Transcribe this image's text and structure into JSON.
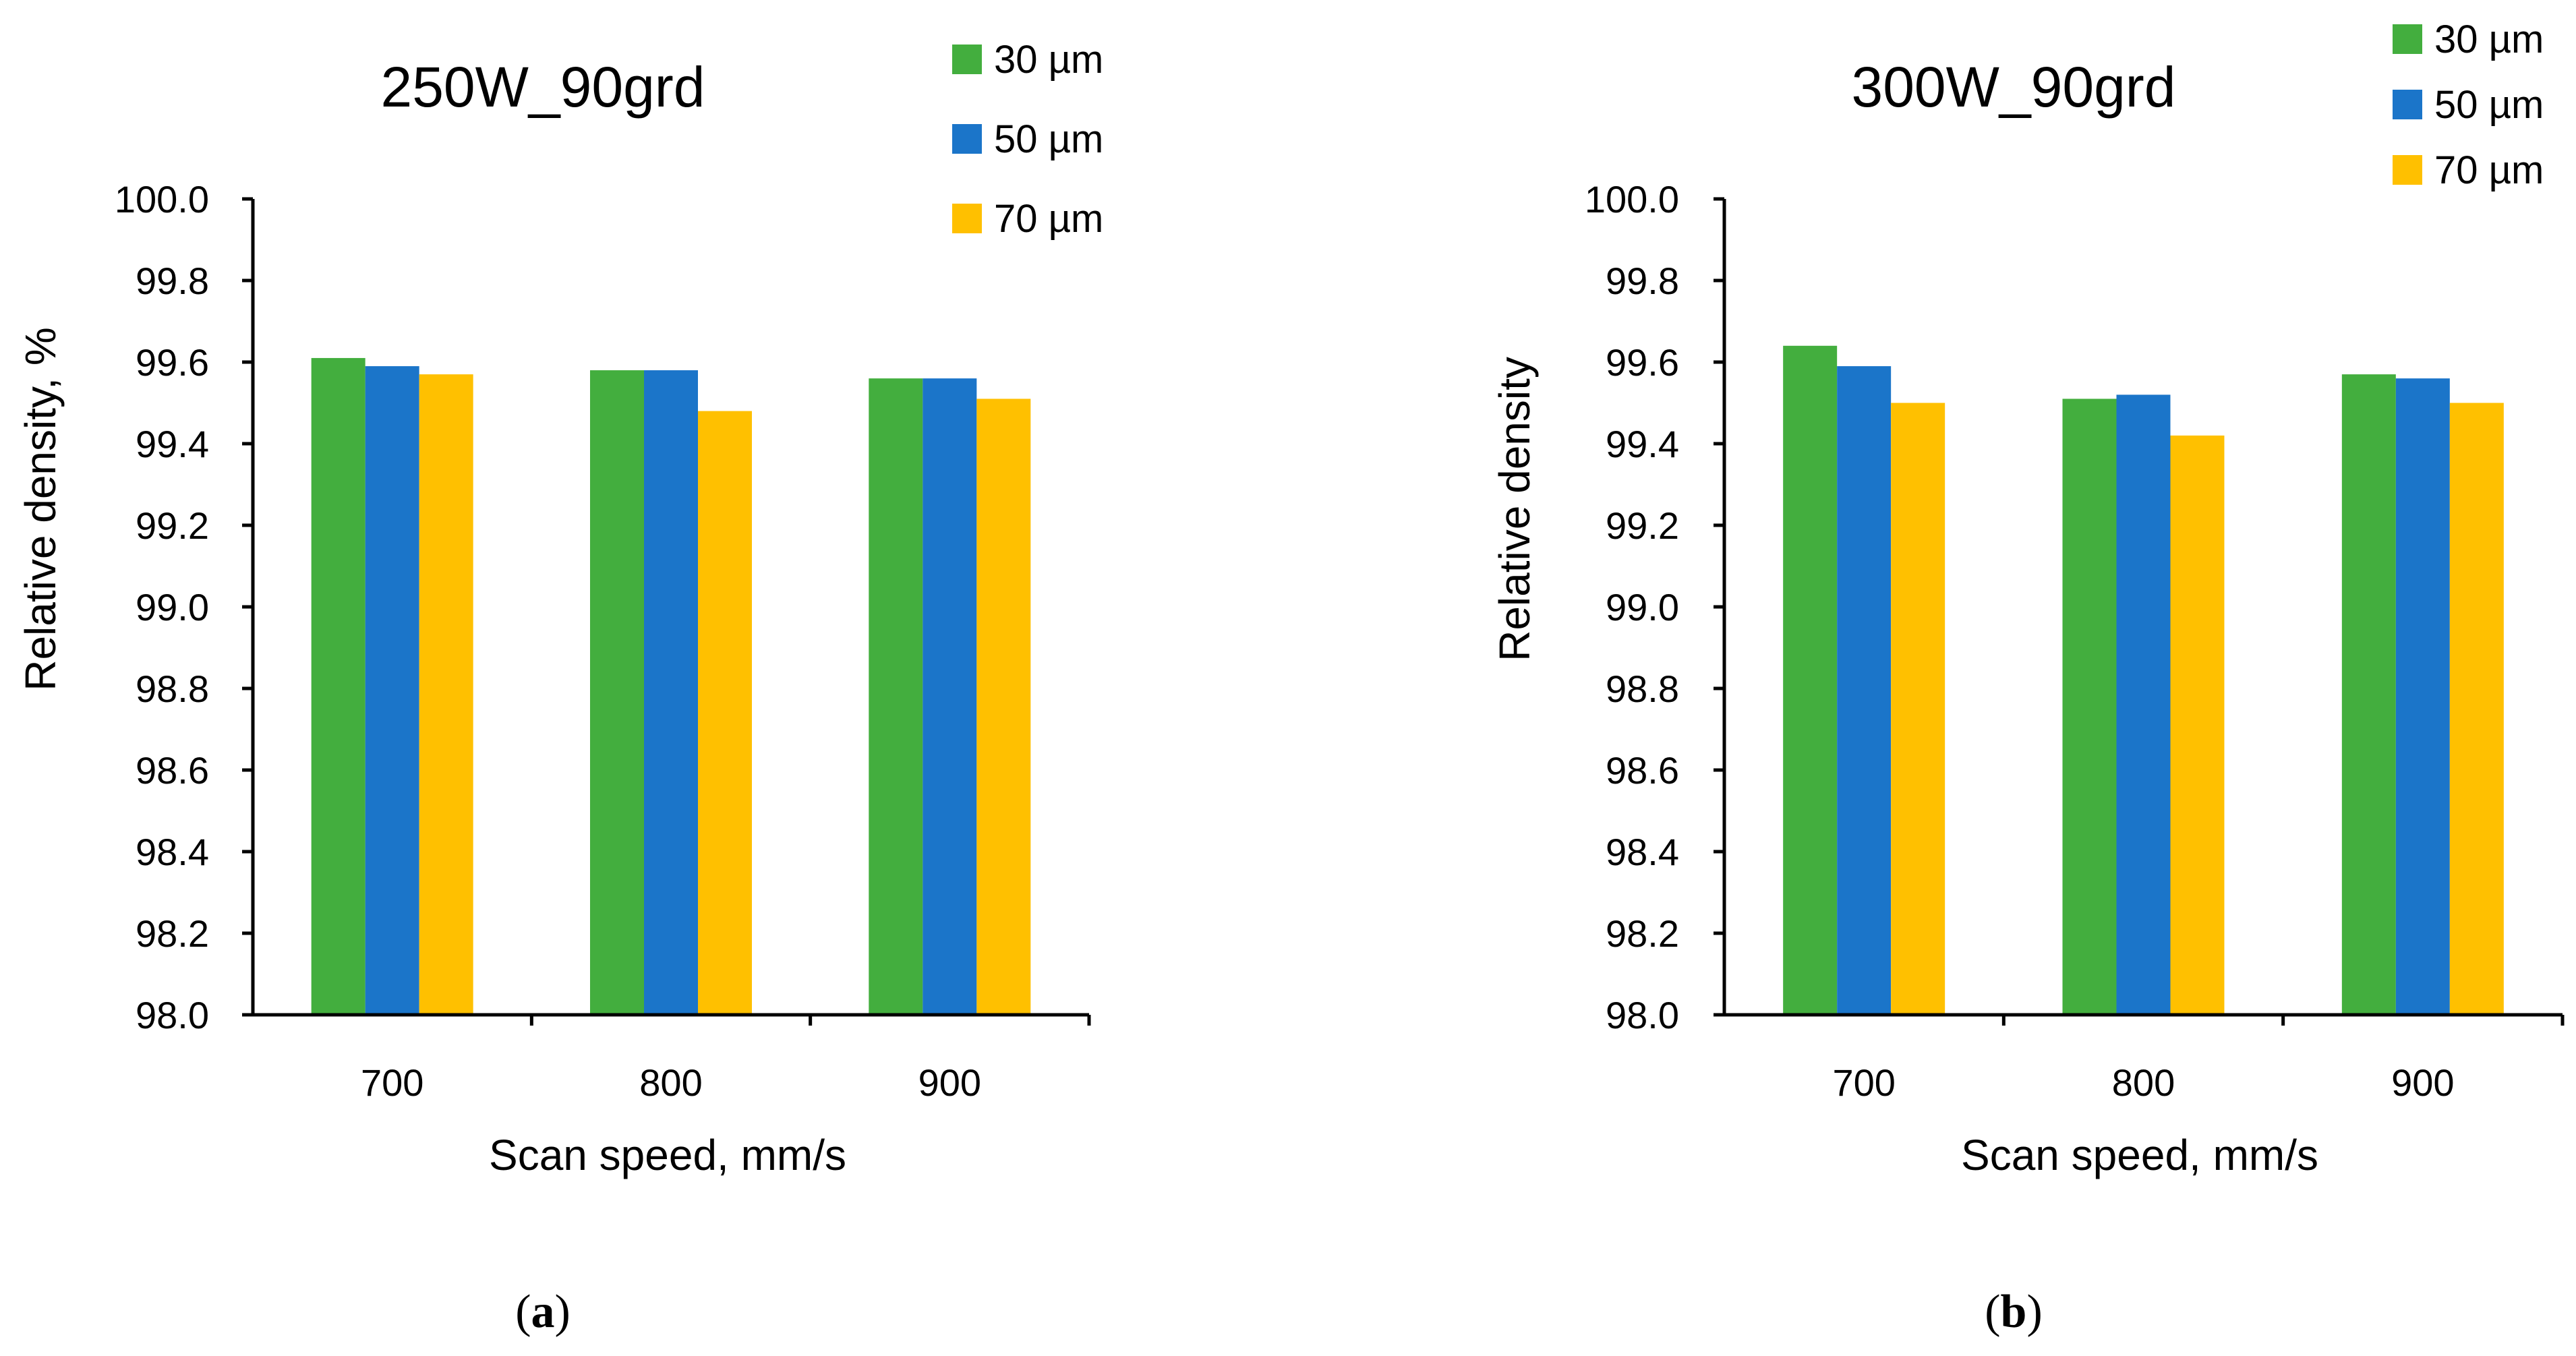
{
  "colors": {
    "series_30": "#43AE3E",
    "series_50": "#1B75C9",
    "series_70": "#FFC000",
    "axis": "#000000"
  },
  "chart_data": [
    {
      "type": "bar",
      "title": "250W_90grd",
      "xlabel": "Scan speed, mm/s",
      "ylabel": "Relative density, %",
      "categories": [
        "700",
        "800",
        "900"
      ],
      "ylim": [
        98.0,
        100.0
      ],
      "yticks": [
        "98.0",
        "98.2",
        "98.4",
        "98.6",
        "98.8",
        "99.0",
        "99.2",
        "99.4",
        "99.6",
        "99.8",
        "100.0"
      ],
      "grid": false,
      "legend_position": "top-right",
      "series": [
        {
          "name": "30 µm",
          "color": "#43AE3E",
          "values": [
            99.61,
            99.58,
            99.56
          ]
        },
        {
          "name": "50 µm",
          "color": "#1B75C9",
          "values": [
            99.59,
            99.58,
            99.56
          ]
        },
        {
          "name": "70 µm",
          "color": "#FFC000",
          "values": [
            99.57,
            99.48,
            99.51
          ]
        }
      ],
      "caption_letter": "a"
    },
    {
      "type": "bar",
      "title": "300W_90grd",
      "xlabel": "Scan speed, mm/s",
      "ylabel": "Relative density",
      "categories": [
        "700",
        "800",
        "900"
      ],
      "ylim": [
        98.0,
        100.0
      ],
      "yticks": [
        "98.0",
        "98.2",
        "98.4",
        "98.6",
        "98.8",
        "99.0",
        "99.2",
        "99.4",
        "99.6",
        "99.8",
        "100.0"
      ],
      "grid": false,
      "legend_position": "top-right",
      "series": [
        {
          "name": "30 µm",
          "color": "#43AE3E",
          "values": [
            99.64,
            99.51,
            99.57
          ]
        },
        {
          "name": "50 µm",
          "color": "#1B75C9",
          "values": [
            99.59,
            99.52,
            99.56
          ]
        },
        {
          "name": "70 µm",
          "color": "#FFC000",
          "values": [
            99.5,
            99.42,
            99.5
          ]
        }
      ],
      "caption_letter": "b"
    }
  ]
}
